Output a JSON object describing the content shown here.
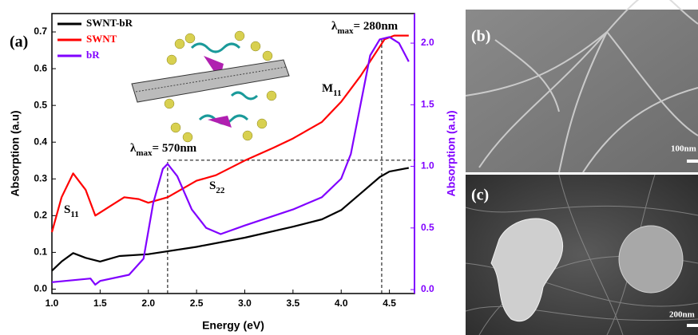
{
  "chart_data": {
    "type": "line",
    "panel_label": "(a)",
    "x_label": "Energy (eV)",
    "y_label": "Absorption (a.u)",
    "y2_label": "Absorption (a.u)",
    "y2_color": "#8000ff",
    "xlim": [
      1.0,
      4.76
    ],
    "ylim": [
      -0.012,
      0.75
    ],
    "y2lim": [
      -0.032,
      2.24
    ],
    "xticks": [
      {
        "value": 1,
        "label": "1.0"
      },
      1.5,
      {
        "value": 2,
        "label": "2.0"
      },
      2.5,
      {
        "value": 3,
        "label": "3.0"
      },
      3.5,
      {
        "value": 4,
        "label": "4.0"
      },
      4.5
    ],
    "yticks": [
      {
        "value": 0,
        "label": "0.0"
      },
      0.1,
      0.2,
      0.3,
      0.4,
      0.5,
      0.6,
      0.7
    ],
    "y2ticks": [
      {
        "value": 0,
        "label": "0.0"
      },
      0.5,
      {
        "value": 1,
        "label": "1.0"
      },
      1.5,
      {
        "value": 2,
        "label": "2.0"
      }
    ],
    "legend": "upper left",
    "series": [
      {
        "name": "SWNT-bR",
        "color": "#000000",
        "x": [
          1.0,
          1.1,
          1.22,
          1.35,
          1.5,
          1.7,
          2.0,
          2.5,
          3.0,
          3.5,
          3.8,
          4.0,
          4.2,
          4.4,
          4.5,
          4.7
        ],
        "values": [
          0.05,
          0.075,
          0.098,
          0.085,
          0.075,
          0.09,
          0.095,
          0.115,
          0.14,
          0.17,
          0.19,
          0.215,
          0.26,
          0.305,
          0.32,
          0.33
        ]
      },
      {
        "name": "SWNT",
        "color": "#ff0000",
        "x": [
          1.0,
          1.1,
          1.22,
          1.35,
          1.45,
          1.6,
          1.75,
          1.9,
          2.0,
          2.2,
          2.5,
          2.7,
          3.0,
          3.3,
          3.5,
          3.8,
          4.0,
          4.2,
          4.35,
          4.45,
          4.55,
          4.7
        ],
        "values": [
          0.155,
          0.25,
          0.315,
          0.27,
          0.2,
          0.225,
          0.25,
          0.245,
          0.235,
          0.25,
          0.295,
          0.31,
          0.35,
          0.385,
          0.41,
          0.455,
          0.51,
          0.58,
          0.64,
          0.68,
          0.69,
          0.69
        ]
      },
      {
        "name": "bR",
        "color": "#8000ff",
        "axis": "y2",
        "x": [
          1.0,
          1.4,
          1.45,
          1.5,
          1.8,
          1.95,
          2.05,
          2.15,
          2.2,
          2.3,
          2.45,
          2.6,
          2.75,
          3.0,
          3.5,
          3.8,
          4.0,
          4.1,
          4.2,
          4.3,
          4.4,
          4.5,
          4.6,
          4.7
        ],
        "values": [
          0.06,
          0.09,
          0.04,
          0.07,
          0.12,
          0.25,
          0.7,
          0.98,
          1.02,
          0.92,
          0.65,
          0.5,
          0.45,
          0.52,
          0.65,
          0.75,
          0.9,
          1.1,
          1.5,
          1.9,
          2.03,
          2.05,
          2.0,
          1.85
        ]
      }
    ],
    "vlines": [
      2.2,
      4.42
    ],
    "hline_y2": 1.05,
    "annotations": [
      {
        "text": "λ",
        "sub": "max",
        "after": "= 280nm"
      },
      {
        "text": "λ",
        "sub": "max",
        "after": "= 570nm"
      },
      {
        "text": "S",
        "sub": "22"
      },
      {
        "text": "S",
        "sub": "11"
      },
      {
        "text": "M",
        "sub": "11"
      }
    ]
  },
  "panels": [
    {
      "label": "(b)",
      "scale": "100nm"
    },
    {
      "label": "(c)",
      "scale": "200nm"
    }
  ]
}
